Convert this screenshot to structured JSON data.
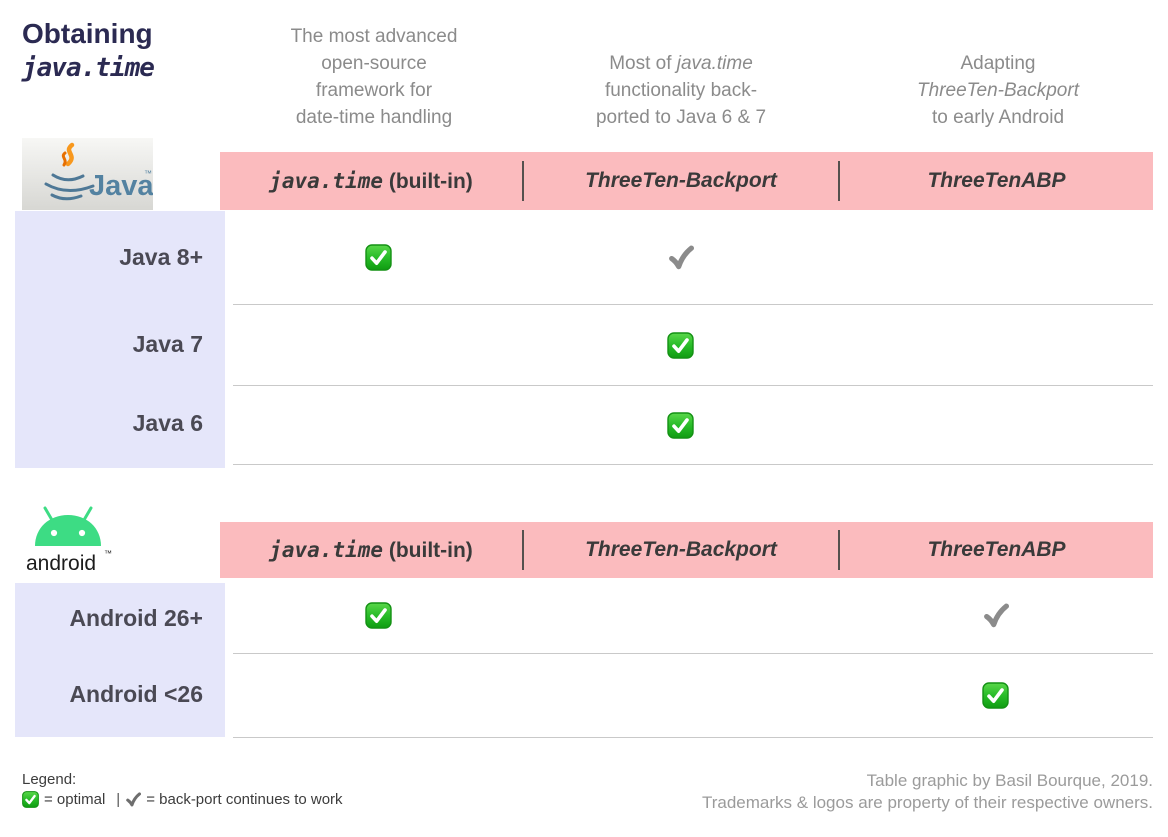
{
  "page_title": {
    "line1": "Obtaining",
    "line2": "java.time"
  },
  "column_descriptions": {
    "col1": {
      "line1": "The most advanced",
      "line2": "open-source",
      "line3": "framework for",
      "line4": "date-time handling"
    },
    "col2": {
      "line1_pre": "Most of ",
      "line1_italic": "java.time",
      "line2": "functionality back-",
      "line3": "ported to Java 6 & 7"
    },
    "col3": {
      "line1": "Adapting",
      "line2_italic": "ThreeTen-Backport",
      "line3": "to early Android"
    }
  },
  "pink_header": {
    "col1_italic": "java.time",
    "col1_rest": " (built-in)",
    "col2": "ThreeTen-Backport",
    "col3": "ThreeTenABP"
  },
  "java_section": {
    "logo_text": "Java",
    "logo_tm": "™",
    "rows": [
      {
        "label": "Java 8+",
        "cells": [
          "optimal",
          "backport",
          ""
        ]
      },
      {
        "label": "Java 7",
        "cells": [
          "",
          "optimal",
          ""
        ]
      },
      {
        "label": "Java 6",
        "cells": [
          "",
          "optimal",
          ""
        ]
      }
    ]
  },
  "android_section": {
    "logo_text": "android",
    "logo_tm": "™",
    "rows": [
      {
        "label": "Android 26+",
        "cells": [
          "optimal",
          "",
          "backport"
        ]
      },
      {
        "label": "Android <26",
        "cells": [
          "",
          "",
          "optimal"
        ]
      }
    ]
  },
  "legend": {
    "heading": "Legend:",
    "optimal_text": "= optimal",
    "divider": "|",
    "backport_text": "= back-port continues to work"
  },
  "footer": {
    "credit_line1": "Table graphic by Basil Bourque, 2019.",
    "credit_line2": "Trademarks & logos are property of their respective owners."
  },
  "icons": {
    "optimal_check": "green-check-badge",
    "backport_check": "gray-heavy-check"
  },
  "colors": {
    "header_pink": "#fbbbbe",
    "label_lavender": "#e5e6fa",
    "title_navy": "#2b2a52",
    "optimal_green": "#22b422",
    "android_green": "#3ddc84",
    "java_blue": "#5382a1"
  }
}
